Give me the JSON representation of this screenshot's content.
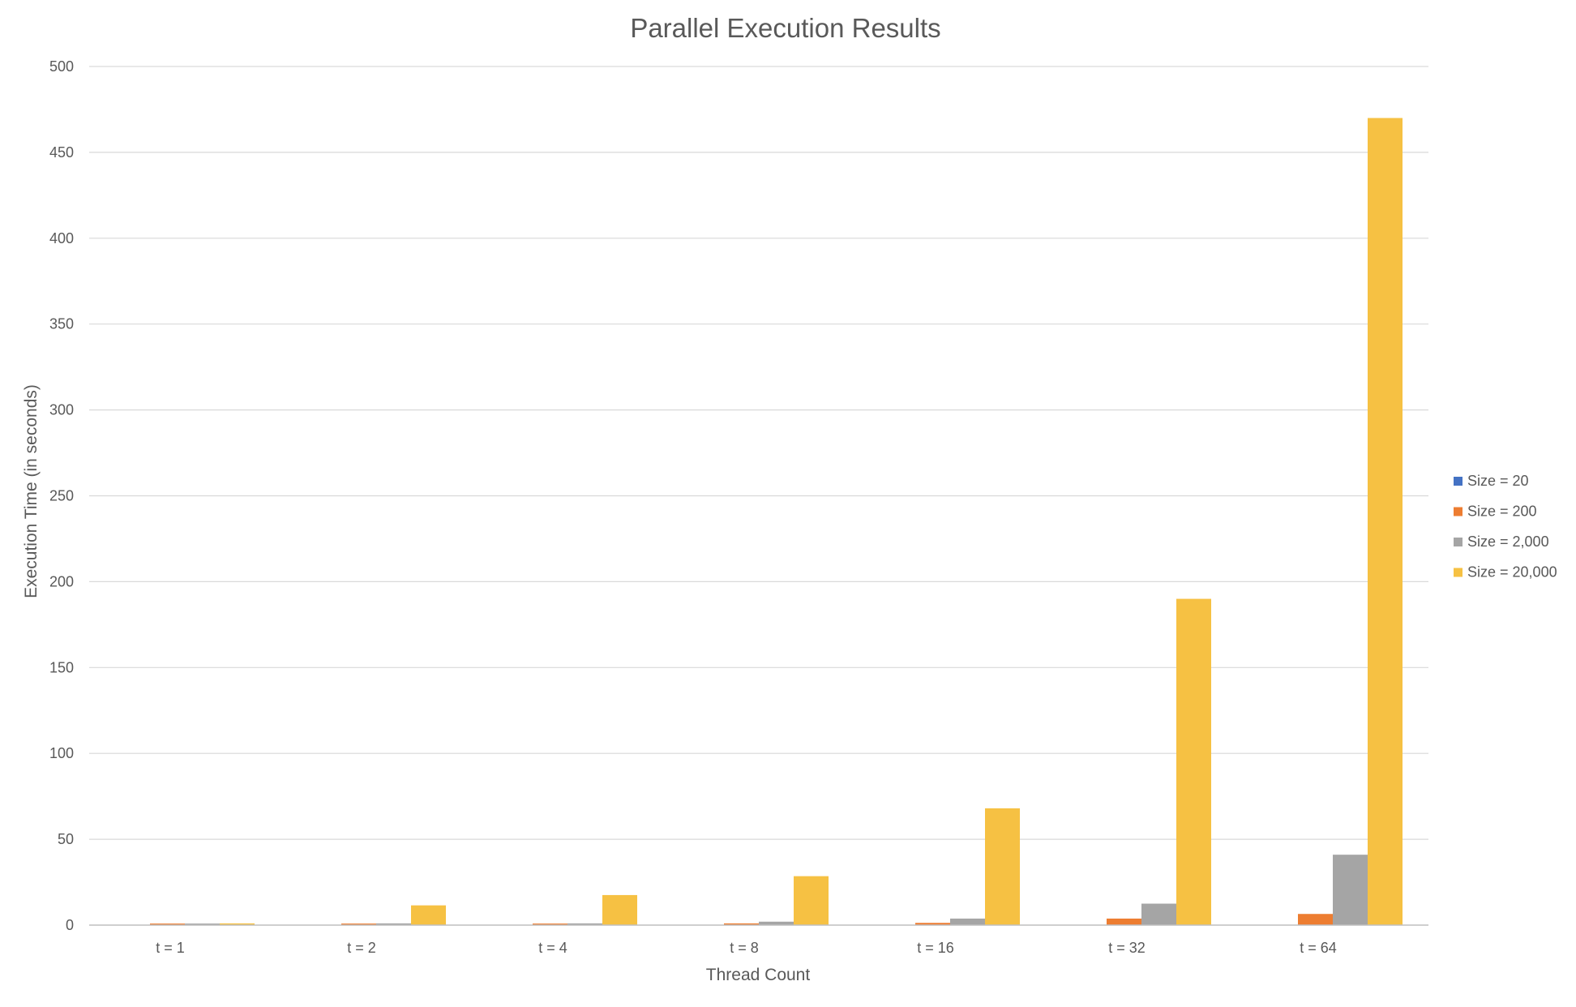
{
  "chart_data": {
    "type": "bar",
    "title": "Parallel Execution Results",
    "xlabel": "Thread Count",
    "ylabel": "Execution Time (in seconds)",
    "ylim": [
      0,
      500
    ],
    "yticks": [
      0,
      50,
      100,
      150,
      200,
      250,
      300,
      350,
      400,
      450,
      500
    ],
    "grid": true,
    "legend_position": "right",
    "categories": [
      "t = 1",
      "t = 2",
      "t = 4",
      "t = 8",
      "t = 16",
      "t = 32",
      "t = 64"
    ],
    "series": [
      {
        "name": "Size = 20",
        "color": "#4472C4",
        "values": [
          0.01,
          0.01,
          0.01,
          0.01,
          0.02,
          0.03,
          0.05
        ]
      },
      {
        "name": "Size = 200",
        "color": "#ED7D31",
        "values": [
          0.9,
          0.9,
          0.9,
          1.0,
          1.3,
          3.8,
          6.5
        ]
      },
      {
        "name": "Size = 2,000",
        "color": "#A5A5A5",
        "values": [
          0.9,
          1.0,
          1.0,
          2.0,
          3.8,
          12.5,
          41
        ]
      },
      {
        "name": "Size = 20,000",
        "color": "#F6C143",
        "values": [
          1.0,
          11.5,
          17.5,
          28.5,
          68,
          190,
          470
        ]
      }
    ]
  }
}
